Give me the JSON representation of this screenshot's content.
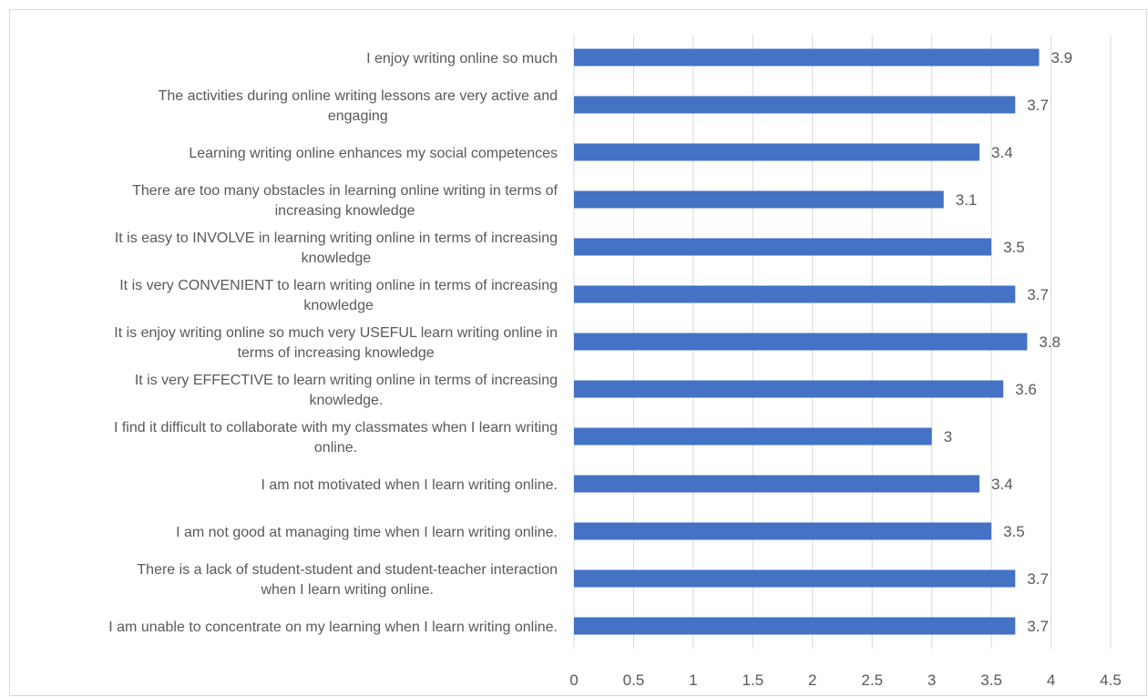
{
  "chart_data": {
    "type": "bar",
    "orientation": "horizontal",
    "title": "",
    "xlabel": "",
    "ylabel": "",
    "xlim": [
      0,
      4.5
    ],
    "x_ticks": [
      "0",
      "0.5",
      "1",
      "1.5",
      "2",
      "2.5",
      "3",
      "3.5",
      "4",
      "4.5"
    ],
    "grid": "vertical",
    "legend": "none",
    "bar_color": "#4472C4",
    "categories": [
      [
        "I enjoy writing online so much"
      ],
      [
        "The activities during online writing lessons are very active and",
        "engaging"
      ],
      [
        "Learning writing online enhances my social competences"
      ],
      [
        "There are too many obstacles in learning online writing in terms of",
        "increasing knowledge"
      ],
      [
        "It is easy to INVOLVE in learning writing online in terms of increasing",
        "knowledge"
      ],
      [
        "It is very CONVENIENT to learn writing online in terms of increasing",
        "knowledge"
      ],
      [
        "It is enjoy writing online so much very USEFUL learn writing online in",
        "terms of increasing knowledge"
      ],
      [
        "It is very EFFECTIVE to learn writing online in terms of increasing",
        "knowledge."
      ],
      [
        "I find it difficult to collaborate with my classmates when I learn writing",
        "online."
      ],
      [
        "I am not motivated when I learn writing online."
      ],
      [
        "I am not good at managing time when I learn writing online."
      ],
      [
        "There is a lack of student-student and student-teacher interaction",
        "when I learn writing online."
      ],
      [
        "I am unable to concentrate on my learning when I learn writing online."
      ]
    ],
    "values": [
      3.9,
      3.7,
      3.4,
      3.1,
      3.5,
      3.7,
      3.8,
      3.6,
      3,
      3.4,
      3.5,
      3.7,
      3.7
    ],
    "value_labels": [
      "3.9",
      "3.7",
      "3.4",
      "3.1",
      "3.5",
      "3.7",
      "3.8",
      "3.6",
      "3",
      "3.4",
      "3.5",
      "3.7",
      "3.7"
    ]
  }
}
